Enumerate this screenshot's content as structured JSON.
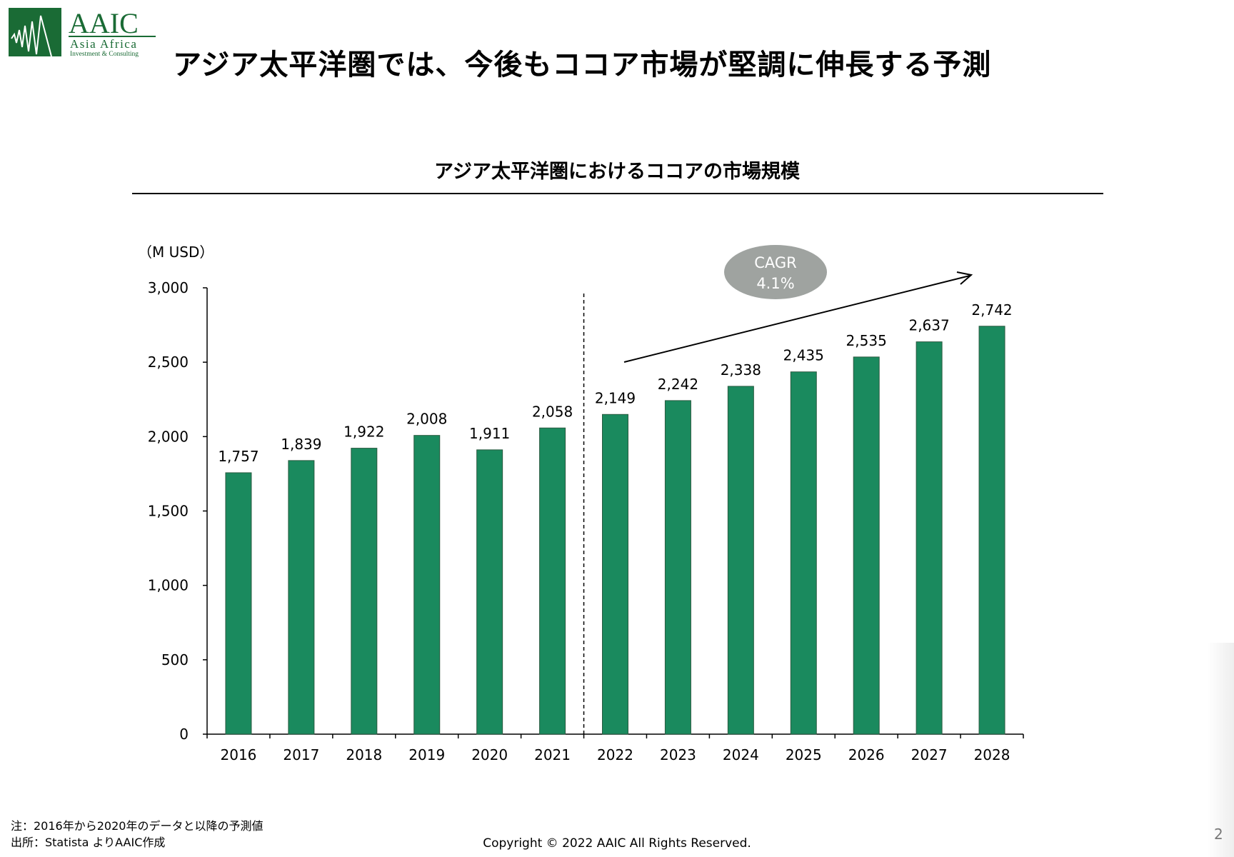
{
  "logo": {
    "text": "AAIC",
    "line1": "Asia Africa",
    "line2": "Investment & Consulting",
    "color": "#1a6b35"
  },
  "title": "アジア太平洋圏では、今後もココア市場が堅調に伸長する予測",
  "chart_data": {
    "type": "bar",
    "title": "アジア太平洋圏におけるココアの市場規模",
    "unit_label": "（M USD）",
    "categories": [
      "2016",
      "2017",
      "2018",
      "2019",
      "2020",
      "2021",
      "2022",
      "2023",
      "2024",
      "2025",
      "2026",
      "2027",
      "2028"
    ],
    "values": [
      1757,
      1839,
      1922,
      2008,
      1911,
      2058,
      2149,
      2242,
      2338,
      2435,
      2535,
      2637,
      2742
    ],
    "data_labels": [
      "1,757",
      "1,839",
      "1,922",
      "2,008",
      "1,911",
      "2,058",
      "2,149",
      "2,242",
      "2,338",
      "2,435",
      "2,535",
      "2,637",
      "2,742"
    ],
    "ylim": [
      0,
      3000
    ],
    "yticks": [
      0,
      500,
      1000,
      1500,
      2000,
      2500,
      3000
    ],
    "ytick_labels": [
      "0",
      "500",
      "1,000",
      "1,500",
      "2,000",
      "2,500",
      "3,000"
    ],
    "grid": false,
    "bar_color": "#1a8a5e",
    "forecast_divider_after": "2021",
    "annotation": {
      "line1": "CAGR",
      "line2": "4.1%",
      "color": "#9fa3a0"
    }
  },
  "footer": {
    "note": "注：2016年から2020年のデータと以降の予測値",
    "source": "出所：Statista よりAAIC作成",
    "copyright": "Copyright © 2022 AAIC All Rights Reserved.",
    "page": "2"
  }
}
